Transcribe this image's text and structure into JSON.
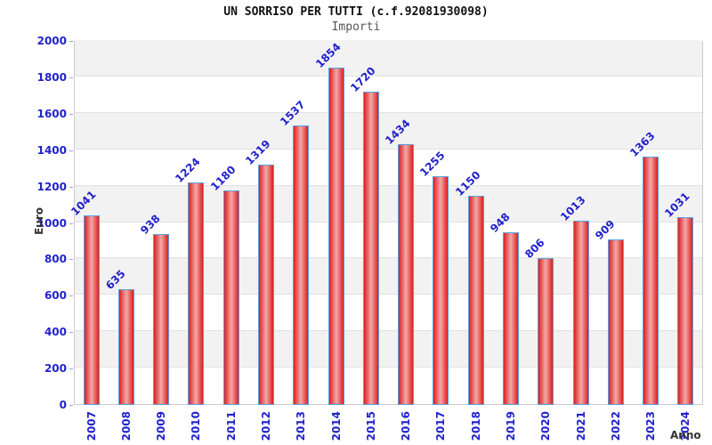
{
  "chart_data": {
    "type": "bar",
    "title": "UN SORRISO PER TUTTI (c.f.92081930098)",
    "subtitle": "Importi",
    "xlabel": "Anno",
    "ylabel": "Euro",
    "categories": [
      "2007",
      "2008",
      "2009",
      "2010",
      "2011",
      "2012",
      "2013",
      "2014",
      "2015",
      "2016",
      "2017",
      "2018",
      "2019",
      "2020",
      "2021",
      "2022",
      "2023",
      "2024"
    ],
    "values": [
      1041,
      635,
      938,
      1224,
      1180,
      1319,
      1537,
      1854,
      1720,
      1434,
      1255,
      1150,
      948,
      806,
      1013,
      909,
      1363,
      1031
    ],
    "ylim": [
      0,
      2000
    ],
    "ytick_step": 200,
    "legend": "none",
    "grid": "alternating-horizontal-bands",
    "colors": {
      "bar_edge": "#dd1f1f",
      "bar_center": "#f4a9a9",
      "bar_border": "#58a0e0",
      "value_label_text": "#2222cc",
      "tick_label_text": "#2222cc",
      "axis_title_text": "#333333",
      "band_gray": "#f2f2f2",
      "band_white": "#ffffff",
      "grid_line": "#e2e2e2",
      "tick_mark": "#a0a0d8",
      "plot_border": "#cccccc",
      "title_text": "#111111",
      "subtitle_text": "#555555"
    }
  }
}
